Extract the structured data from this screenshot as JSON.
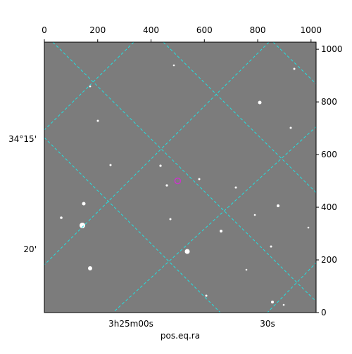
{
  "chart_data": {
    "type": "image",
    "xlim": [
      0,
      1019
    ],
    "ylim": [
      0,
      1027
    ],
    "xticks": [
      0,
      200,
      400,
      600,
      800,
      1000
    ],
    "yticks": [
      0,
      200,
      400,
      600,
      800,
      1000
    ],
    "ra_ticks": [
      "3h25m00s",
      "30s"
    ],
    "dec_ticks": [
      "34°15'",
      "20'"
    ],
    "xlabel": "pos.eq.ra",
    "marker": {
      "x": 500,
      "y": 500,
      "color": "#cc33cc"
    }
  }
}
